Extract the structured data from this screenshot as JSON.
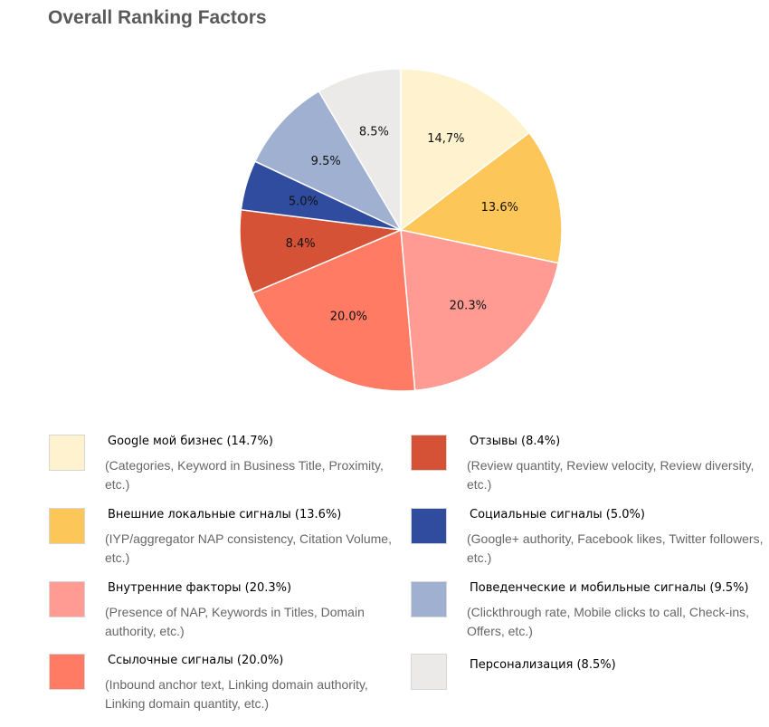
{
  "chart_data": {
    "type": "pie",
    "title": "Overall Ranking Factors",
    "slices": [
      {
        "label": "14,7%",
        "value": 14.7,
        "color": "#fff3cf"
      },
      {
        "label": "13.6%",
        "value": 13.6,
        "color": "#fdc659"
      },
      {
        "label": "20.3%",
        "value": 20.3,
        "color": "#ff9b93"
      },
      {
        "label": "20.0%",
        "value": 20.0,
        "color": "#ff7b63"
      },
      {
        "label": "8.4%",
        "value": 8.4,
        "color": "#d55236"
      },
      {
        "label": "5.0%",
        "value": 5.0,
        "color": "#304c9e"
      },
      {
        "label": "9.5%",
        "value": 9.5,
        "color": "#a0b0d0"
      },
      {
        "label": "8.5%",
        "value": 8.5,
        "color": "#ece9e9"
      }
    ],
    "legend": [
      {
        "name": "Google мой бизнес  (14.7%)",
        "desc": "(Categories, Keyword in Business Title, Proximity, etc.)",
        "color": "#fff3cf"
      },
      {
        "name": "Отзывы (8.4%)",
        "desc": "(Review quantity, Review velocity, Review diversity, etc.)",
        "color": "#d55236"
      },
      {
        "name": "Внешние локальные сигналы  (13.6%)",
        "desc": "(IYP/aggregator NAP consistency, Citation Volume, etc.)",
        "color": "#fdc659"
      },
      {
        "name": "Социальные сигналы (5.0%)",
        "desc": "(Google+ authority, Facebook likes, Twitter followers, etc.)",
        "color": "#304c9e"
      },
      {
        "name": "Внутренние факторы  (20.3%)",
        "desc": "(Presence of NAP, Keywords in Titles, Domain authority, etc.)",
        "color": "#ff9b93"
      },
      {
        "name": "Поведенческие и мобильные сигналы (9.5%)",
        "desc": "(Clickthrough rate, Mobile clicks to call, Check-ins, Offers, etc.)",
        "color": "#a0b0d0"
      },
      {
        "name": "Ссылочные сигналы  (20.0%)",
        "desc": "(Inbound anchor text, Linking domain authority, Linking domain quantity, etc.)",
        "color": "#ff7b63"
      },
      {
        "name": "Персонализация (8.5%)",
        "desc": "",
        "color": "#ece9e9"
      }
    ]
  }
}
